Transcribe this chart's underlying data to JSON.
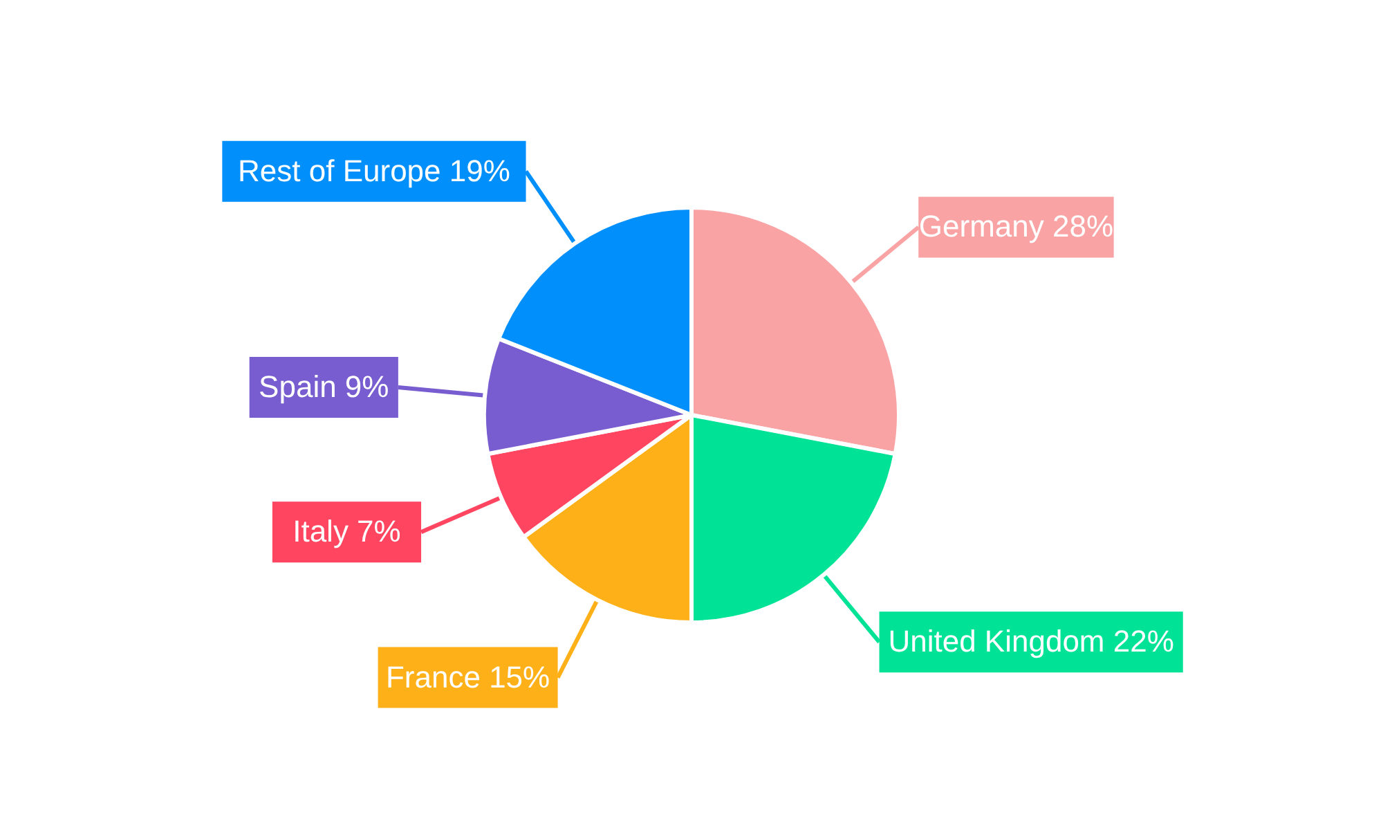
{
  "chart_data": {
    "type": "pie",
    "categories": [
      "Germany",
      "United Kingdom",
      "France",
      "Italy",
      "Spain",
      "Rest of Europe"
    ],
    "values": [
      28,
      22,
      15,
      7,
      9,
      19
    ],
    "colors": [
      "#f9a3a4",
      "#00e396",
      "#feb019",
      "#ff4560",
      "#775dd0",
      "#008ffb"
    ],
    "value_labels": [
      "28%",
      "22%",
      "15%",
      "7%",
      "9%",
      "19%"
    ]
  }
}
